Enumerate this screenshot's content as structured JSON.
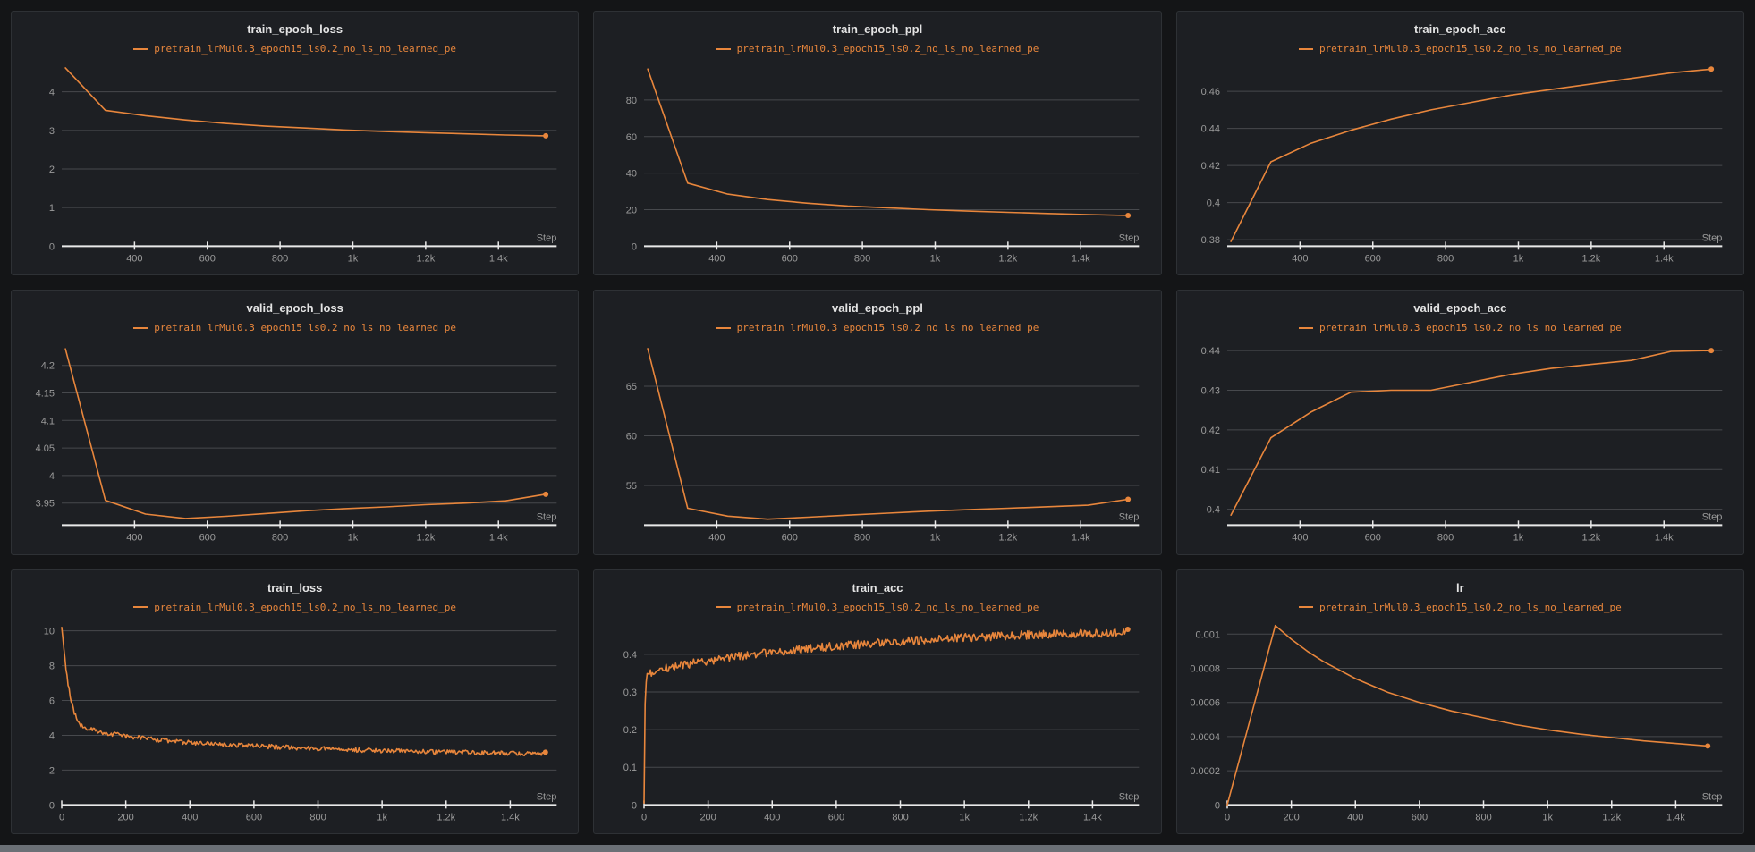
{
  "theme": {
    "page_bg": "#141517",
    "panel_bg": "#1d1f23",
    "panel_border": "#2e3135",
    "grid_color": "#47494d",
    "axis_color": "#e9e9e9",
    "tick_color": "#9b9b9b",
    "title_color": "#e4e4e4",
    "accent": "#e8863c",
    "scrollbar": "#6b7076"
  },
  "run_name": "pretrain_lrMul0.3_epoch15_ls0.2_no_ls_no_learned_pe",
  "step_label": "Step",
  "chart_data": [
    {
      "type": "line",
      "title": "train_epoch_loss",
      "xlabel": "Step",
      "x": [
        210,
        320,
        430,
        540,
        650,
        760,
        870,
        980,
        1090,
        1200,
        1310,
        1420,
        1530
      ],
      "y": [
        4.62,
        3.52,
        3.38,
        3.27,
        3.18,
        3.11,
        3.06,
        3.01,
        2.97,
        2.94,
        2.91,
        2.88,
        2.86
      ],
      "xlim": [
        200,
        1560
      ],
      "ylim": [
        0,
        4.78
      ],
      "xticks": [
        400,
        600,
        800,
        1000,
        1200,
        1400
      ],
      "xtick_labels": [
        "400",
        "600",
        "800",
        "1k",
        "1.2k",
        "1.4k"
      ],
      "yticks": [
        0,
        1,
        2,
        3,
        4
      ],
      "ytick_labels": [
        "0",
        "1",
        "2",
        "3",
        "4"
      ],
      "end_dot": true,
      "noise": 0
    },
    {
      "type": "line",
      "title": "train_epoch_ppl",
      "xlabel": "Step",
      "x": [
        210,
        320,
        430,
        540,
        650,
        760,
        870,
        980,
        1090,
        1200,
        1310,
        1420,
        1530
      ],
      "y": [
        97,
        34.5,
        28.5,
        25.5,
        23.5,
        22,
        21,
        20,
        19.2,
        18.5,
        17.9,
        17.3,
        16.8
      ],
      "xlim": [
        200,
        1560
      ],
      "ylim": [
        0,
        101
      ],
      "xticks": [
        400,
        600,
        800,
        1000,
        1200,
        1400
      ],
      "xtick_labels": [
        "400",
        "600",
        "800",
        "1k",
        "1.2k",
        "1.4k"
      ],
      "yticks": [
        0,
        20,
        40,
        60,
        80
      ],
      "ytick_labels": [
        "0",
        "20",
        "40",
        "60",
        "80"
      ],
      "end_dot": true,
      "noise": 0
    },
    {
      "type": "line",
      "title": "train_epoch_acc",
      "xlabel": "Step",
      "x": [
        210,
        320,
        430,
        540,
        650,
        760,
        870,
        980,
        1090,
        1200,
        1310,
        1420,
        1530
      ],
      "y": [
        0.379,
        0.422,
        0.432,
        0.439,
        0.445,
        0.45,
        0.454,
        0.458,
        0.461,
        0.464,
        0.467,
        0.47,
        0.472
      ],
      "xlim": [
        200,
        1560
      ],
      "ylim": [
        0.3765,
        0.476
      ],
      "xticks": [
        400,
        600,
        800,
        1000,
        1200,
        1400
      ],
      "xtick_labels": [
        "400",
        "600",
        "800",
        "1k",
        "1.2k",
        "1.4k"
      ],
      "yticks": [
        0.38,
        0.4,
        0.42,
        0.44,
        0.46
      ],
      "ytick_labels": [
        "0.38",
        "0.4",
        "0.42",
        "0.44",
        "0.46"
      ],
      "end_dot": true,
      "noise": 0
    },
    {
      "type": "line",
      "title": "valid_epoch_loss",
      "xlabel": "Step",
      "x": [
        210,
        320,
        430,
        540,
        650,
        760,
        870,
        980,
        1090,
        1200,
        1310,
        1420,
        1530
      ],
      "y": [
        4.23,
        3.955,
        3.93,
        3.922,
        3.926,
        3.931,
        3.936,
        3.94,
        3.943,
        3.947,
        3.95,
        3.954,
        3.966
      ],
      "xlim": [
        200,
        1560
      ],
      "ylim": [
        3.91,
        4.245
      ],
      "xticks": [
        400,
        600,
        800,
        1000,
        1200,
        1400
      ],
      "xtick_labels": [
        "400",
        "600",
        "800",
        "1k",
        "1.2k",
        "1.4k"
      ],
      "yticks": [
        3.95,
        4.0,
        4.05,
        4.1,
        4.15,
        4.2
      ],
      "ytick_labels": [
        "3.95",
        "4",
        "4.05",
        "4.1",
        "4.15",
        "4.2"
      ],
      "end_dot": true,
      "noise": 0
    },
    {
      "type": "line",
      "title": "valid_epoch_ppl",
      "xlabel": "Step",
      "x": [
        210,
        320,
        430,
        540,
        650,
        760,
        870,
        980,
        1090,
        1200,
        1310,
        1420,
        1530
      ],
      "y": [
        68.8,
        52.7,
        51.9,
        51.6,
        51.8,
        52.0,
        52.2,
        52.4,
        52.55,
        52.7,
        52.85,
        53.0,
        53.6
      ],
      "xlim": [
        200,
        1560
      ],
      "ylim": [
        51.0,
        69.6
      ],
      "xticks": [
        400,
        600,
        800,
        1000,
        1200,
        1400
      ],
      "xtick_labels": [
        "400",
        "600",
        "800",
        "1k",
        "1.2k",
        "1.4k"
      ],
      "yticks": [
        55,
        60,
        65
      ],
      "ytick_labels": [
        "55",
        "60",
        "65"
      ],
      "end_dot": true,
      "noise": 0
    },
    {
      "type": "line",
      "title": "valid_epoch_acc",
      "xlabel": "Step",
      "x": [
        210,
        320,
        430,
        540,
        650,
        760,
        870,
        980,
        1090,
        1200,
        1310,
        1420,
        1530
      ],
      "y": [
        0.3985,
        0.418,
        0.4245,
        0.4295,
        0.43,
        0.43,
        0.432,
        0.434,
        0.4355,
        0.4365,
        0.4375,
        0.4398,
        0.44
      ],
      "xlim": [
        200,
        1560
      ],
      "ylim": [
        0.396,
        0.4425
      ],
      "xticks": [
        400,
        600,
        800,
        1000,
        1200,
        1400
      ],
      "xtick_labels": [
        "400",
        "600",
        "800",
        "1k",
        "1.2k",
        "1.4k"
      ],
      "yticks": [
        0.4,
        0.41,
        0.42,
        0.43,
        0.44
      ],
      "ytick_labels": [
        "0.4",
        "0.41",
        "0.42",
        "0.43",
        "0.44"
      ],
      "end_dot": true,
      "noise": 0
    },
    {
      "type": "line",
      "title": "train_loss",
      "xlabel": "Step",
      "trend_x": [
        0,
        8,
        16,
        25,
        35,
        45,
        60,
        80,
        110,
        150,
        200,
        260,
        330,
        400,
        480,
        560,
        650,
        750,
        850,
        950,
        1050,
        1150,
        1250,
        1350,
        1450,
        1510
      ],
      "trend_y": [
        10.2,
        8.8,
        7.4,
        6.4,
        5.6,
        5.0,
        4.6,
        4.42,
        4.25,
        4.1,
        3.95,
        3.82,
        3.7,
        3.58,
        3.5,
        3.42,
        3.35,
        3.27,
        3.2,
        3.14,
        3.1,
        3.05,
        3.02,
        2.98,
        2.95,
        2.92
      ],
      "n_points": 460,
      "noise": 0.13,
      "xlim": [
        0,
        1545
      ],
      "ylim": [
        0,
        10.6
      ],
      "xticks": [
        0,
        200,
        400,
        600,
        800,
        1000,
        1200,
        1400
      ],
      "xtick_labels": [
        "0",
        "200",
        "400",
        "600",
        "800",
        "1k",
        "1.2k",
        "1.4k"
      ],
      "yticks": [
        0,
        2,
        4,
        6,
        8,
        10
      ],
      "ytick_labels": [
        "0",
        "2",
        "4",
        "6",
        "8",
        "10"
      ],
      "end_dot": true
    },
    {
      "type": "line",
      "title": "train_acc",
      "xlabel": "Step",
      "trend_x": [
        0,
        4,
        12,
        25,
        45,
        70,
        100,
        150,
        200,
        260,
        330,
        400,
        480,
        560,
        650,
        750,
        850,
        950,
        1050,
        1150,
        1250,
        1350,
        1450,
        1510
      ],
      "trend_y": [
        0.005,
        0.325,
        0.345,
        0.352,
        0.358,
        0.363,
        0.368,
        0.376,
        0.383,
        0.39,
        0.398,
        0.406,
        0.413,
        0.419,
        0.425,
        0.431,
        0.437,
        0.442,
        0.446,
        0.45,
        0.453,
        0.455,
        0.457,
        0.458
      ],
      "n_points": 460,
      "noise": 0.011,
      "xlim": [
        0,
        1545
      ],
      "ylim": [
        0,
        0.49
      ],
      "xticks": [
        0,
        200,
        400,
        600,
        800,
        1000,
        1200,
        1400
      ],
      "xtick_labels": [
        "0",
        "200",
        "400",
        "600",
        "800",
        "1k",
        "1.2k",
        "1.4k"
      ],
      "yticks": [
        0,
        0.1,
        0.2,
        0.3,
        0.4
      ],
      "ytick_labels": [
        "0",
        "0.1",
        "0.2",
        "0.3",
        "0.4"
      ],
      "end_dot": true
    },
    {
      "type": "line",
      "title": "lr",
      "xlabel": "Step",
      "x": [
        0,
        150,
        200,
        250,
        300,
        350,
        400,
        450,
        500,
        600,
        700,
        800,
        900,
        1000,
        1100,
        1200,
        1300,
        1400,
        1500
      ],
      "y": [
        0,
        0.00105,
        0.00097,
        0.0009,
        0.00084,
        0.00079,
        0.00074,
        0.0007,
        0.00066,
        0.0006,
        0.00055,
        0.00051,
        0.00047,
        0.00044,
        0.000415,
        0.000395,
        0.000375,
        0.00036,
        0.000345
      ],
      "xlim": [
        0,
        1545
      ],
      "ylim": [
        0,
        0.00108
      ],
      "xticks": [
        0,
        200,
        400,
        600,
        800,
        1000,
        1200,
        1400
      ],
      "xtick_labels": [
        "0",
        "200",
        "400",
        "600",
        "800",
        "1k",
        "1.2k",
        "1.4k"
      ],
      "yticks": [
        0,
        0.0002,
        0.0004,
        0.0006,
        0.0008,
        0.001
      ],
      "ytick_labels": [
        "0",
        "0.0002",
        "0.0004",
        "0.0006",
        "0.0008",
        "0.001"
      ],
      "end_dot": true,
      "noise": 0
    }
  ]
}
